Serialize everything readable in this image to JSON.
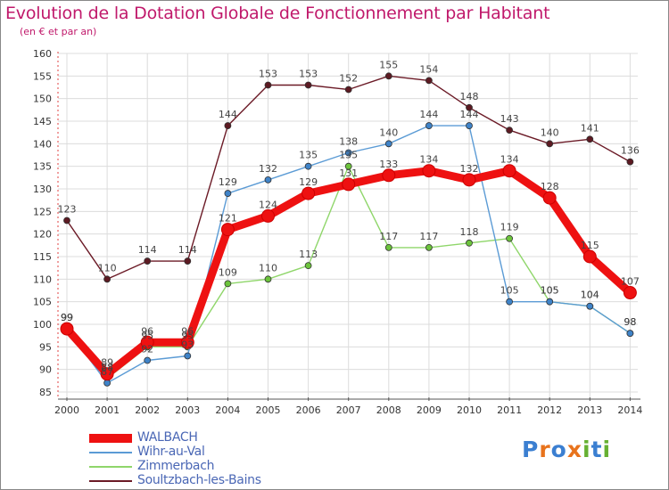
{
  "title": "Evolution de la Dotation Globale de Fonctionnement par Habitant",
  "subtitle": "(en € et par an)",
  "chart_data": {
    "type": "line",
    "title": "Evolution de la Dotation Globale de Fonctionnement par Habitant",
    "ylabel": "(en € et par an)",
    "xlabel": "",
    "ylim": [
      85,
      160
    ],
    "yticks": [
      85,
      90,
      95,
      100,
      105,
      110,
      115,
      120,
      125,
      130,
      135,
      140,
      145,
      150,
      155,
      160
    ],
    "x": [
      "2000",
      "2001",
      "2002",
      "2003",
      "2004",
      "2005",
      "2006",
      "2007",
      "2008",
      "2009",
      "2010",
      "2011",
      "2012",
      "2013",
      "2014"
    ],
    "series": [
      {
        "name": "Soultzbach-les-Bains",
        "color": "#6b1a26",
        "marker": "#5c1a22",
        "values": [
          123,
          110,
          114,
          114,
          144,
          153,
          153,
          152,
          155,
          154,
          148,
          143,
          140,
          141,
          136
        ]
      },
      {
        "name": "Zimmerbach",
        "color": "#8fd66a",
        "marker": "#6cc43c",
        "values": [
          99,
          88,
          95,
          95,
          109,
          110,
          113,
          135,
          117,
          117,
          118,
          119,
          105,
          104,
          98
        ]
      },
      {
        "name": "Wihr-au-Val",
        "color": "#5b9bd5",
        "marker": "#3f83c8",
        "values": [
          99,
          87,
          92,
          93,
          129,
          132,
          135,
          138,
          140,
          144,
          144,
          105,
          105,
          104,
          98
        ]
      },
      {
        "name": "WALBACH",
        "color": "#ee1111",
        "marker": "#ee1111",
        "values": [
          99,
          89,
          96,
          96,
          121,
          124,
          129,
          131,
          133,
          134,
          132,
          134,
          128,
          115,
          107
        ]
      }
    ],
    "data_labels": [
      {
        "series": "Soultzbach-les-Bains",
        "values": [
          123,
          110,
          114,
          114,
          144,
          153,
          153,
          152,
          155,
          154,
          148,
          143,
          140,
          141,
          136
        ]
      },
      {
        "series": "WALBACH",
        "values": [
          99,
          89,
          96,
          96,
          121,
          124,
          129,
          131,
          133,
          134,
          132,
          134,
          128,
          115,
          107
        ]
      },
      {
        "series": "Wihr-au-Val",
        "values": [
          99,
          87,
          92,
          93,
          129,
          132,
          135,
          138,
          140,
          144,
          144,
          105,
          105,
          104,
          98
        ]
      },
      {
        "series": "Zimmerbach",
        "values": [
          99,
          88,
          95,
          95,
          109,
          110,
          113,
          135,
          117,
          117,
          118,
          119,
          105,
          104,
          98
        ]
      }
    ]
  },
  "legend": [
    {
      "label": "WALBACH",
      "color": "#ee1111"
    },
    {
      "label": "Wihr-au-Val",
      "color": "#5b9bd5"
    },
    {
      "label": "Zimmerbach",
      "color": "#8fd66a"
    },
    {
      "label": "Soultzbach-les-Bains",
      "color": "#6b1a26"
    }
  ],
  "logo": {
    "text": "Proxiti",
    "colors": [
      "#3b7fd1",
      "#e8731c",
      "#3b7fd1",
      "#e8731c",
      "#66b032",
      "#3b7fd1",
      "#66b032"
    ]
  }
}
